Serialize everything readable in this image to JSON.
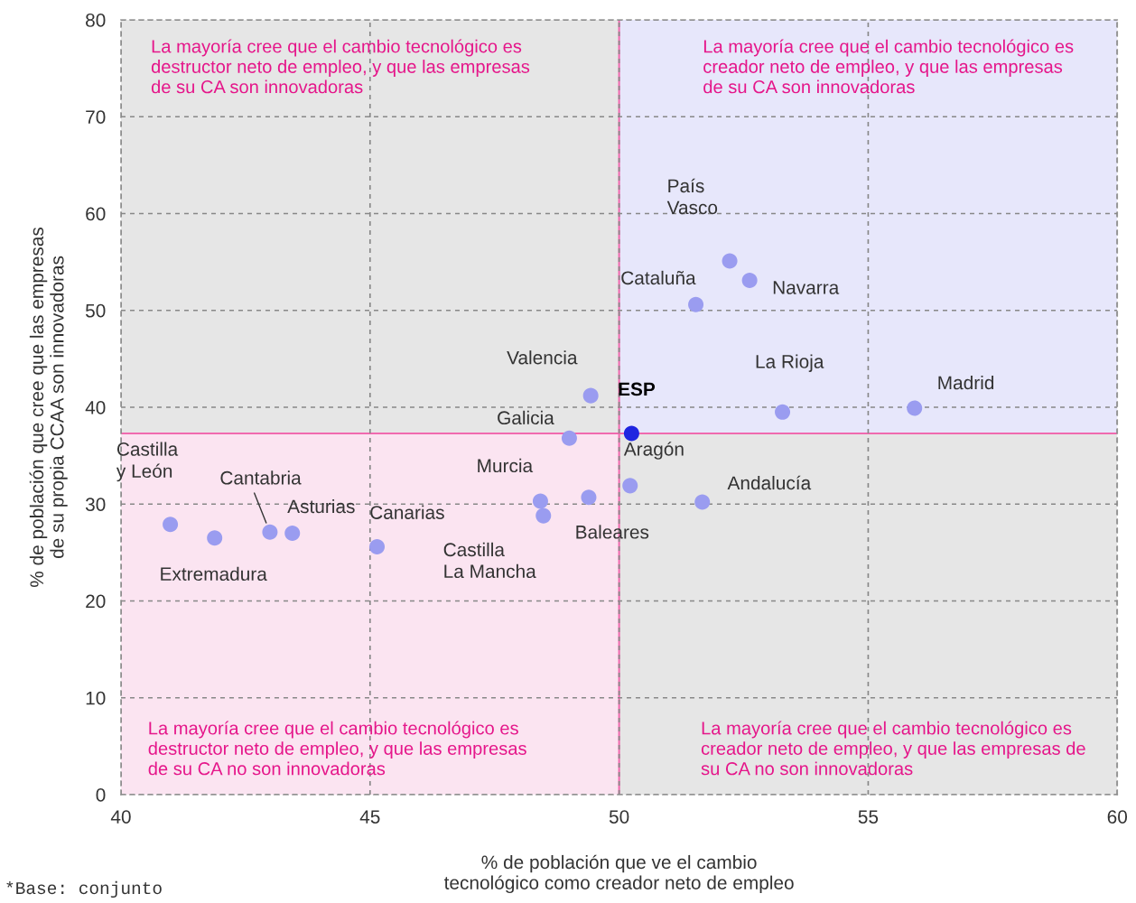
{
  "chart_data": {
    "type": "scatter",
    "xlabel": "% de población que ve el cambio\ntecnológico como creador neto de empleo",
    "ylabel": "% de población que cree que las empresas\nde su propia CCAA son innovadoras",
    "xlim": [
      40,
      60
    ],
    "xticks": [
      40,
      45,
      50,
      55,
      60
    ],
    "ylim": [
      0,
      80
    ],
    "yticks": [
      0,
      10,
      20,
      30,
      40,
      50,
      60,
      70,
      80
    ],
    "grid": true,
    "marker": "circle",
    "series": [
      {
        "color": "#9a9cf0",
        "x": [
          40.99,
          41.88,
          42.99,
          43.44,
          45.14,
          48.42,
          48.48,
          49.39,
          49.0,
          49.43,
          50.22,
          51.67,
          51.54,
          52.22,
          52.62,
          53.28,
          55.93
        ],
        "values": [
          27.9,
          26.5,
          27.1,
          27.0,
          25.6,
          30.3,
          28.8,
          30.7,
          36.8,
          41.2,
          31.9,
          30.2,
          50.6,
          55.1,
          53.1,
          39.5,
          39.9
        ]
      },
      {
        "name": "ESP",
        "color": "#1f25e0",
        "x": [
          50.25
        ],
        "values": [
          37.3
        ]
      }
    ],
    "ref_lines": [
      {
        "axis": "x",
        "value": 50,
        "color": "#f06aaf"
      },
      {
        "axis": "y",
        "value": 37.3,
        "color": "#f06aaf"
      }
    ],
    "bands": [
      {
        "axis": "x",
        "from": 50,
        "to": 60,
        "color": "#e7e7fb"
      },
      {
        "axis": "x",
        "from": 40,
        "to": 50,
        "color": "#fbe4f1"
      }
    ],
    "annotations": [
      {
        "text": "Castilla\ny León",
        "x": 40.99,
        "y": 27.9
      },
      {
        "text": "Extremadura",
        "x": 41.88,
        "y": 26.5
      },
      {
        "text": "Cantabria",
        "x": 42.99,
        "y": 27.1
      },
      {
        "text": "Asturias",
        "x": 43.44,
        "y": 27.0
      },
      {
        "text": "Canarias",
        "x": 45.14,
        "y": 25.6
      },
      {
        "text": "Murcia",
        "x": 48.42,
        "y": 30.3
      },
      {
        "text": "Castilla\nLa Mancha",
        "x": 48.48,
        "y": 28.8
      },
      {
        "text": "Baleares",
        "x": 49.39,
        "y": 30.7
      },
      {
        "text": "Galicia",
        "x": 49.0,
        "y": 36.8
      },
      {
        "text": "Valencia",
        "x": 49.43,
        "y": 41.2
      },
      {
        "text": "Aragón",
        "x": 50.22,
        "y": 31.9
      },
      {
        "text": "Andalucía",
        "x": 51.67,
        "y": 30.2
      },
      {
        "text": "Cataluña",
        "x": 51.54,
        "y": 50.6
      },
      {
        "text": "País\nVasco",
        "x": 52.22,
        "y": 55.1
      },
      {
        "text": "Navarra",
        "x": 52.62,
        "y": 53.1
      },
      {
        "text": "La Rioja",
        "x": 53.28,
        "y": 39.5
      },
      {
        "text": "Madrid",
        "x": 55.93,
        "y": 39.9
      },
      "La mayoría cree que el cambio tecnológico es\ndestructor neto de empleo, y que las empresas\nde su CA son innovadoras",
      "La mayoría cree que el cambio tecnológico es\ncreador neto de empleo, y que las empresas\nde su CA son innovadoras",
      "La mayoría cree que el cambio tecnológico es\ndestructor neto de empleo, y que las empresas\nde su CA no son innovadoras",
      "La mayoría cree que el cambio tecnológico es\ncreador neto de empleo, y que las empresas de\nsu CA no son innovadoras",
      "*Base: conjunto"
    ]
  }
}
